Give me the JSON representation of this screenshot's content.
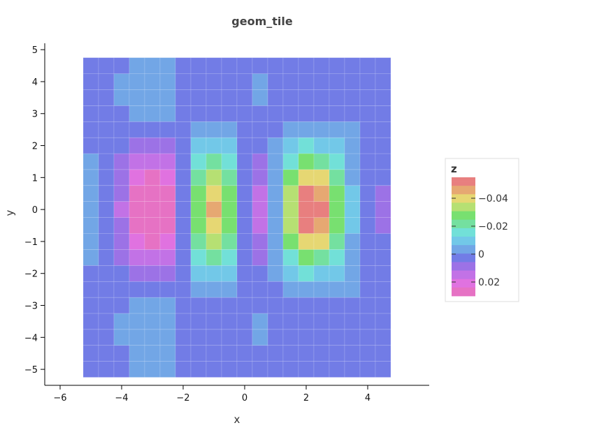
{
  "chart_data": {
    "type": "heatmap",
    "title": "geom_tile",
    "xlabel": "x",
    "ylabel": "y",
    "xlim": [
      -6.5,
      6
    ],
    "ylim": [
      -5.5,
      5.2
    ],
    "x_ticks": [
      -6,
      -4,
      -2,
      0,
      2,
      4
    ],
    "y_ticks": [
      -5,
      -4,
      -3,
      -2,
      -1,
      0,
      1,
      2,
      3,
      4,
      5
    ],
    "x_tick_labels": [
      "−6",
      "−4",
      "−2",
      "0",
      "2",
      "4"
    ],
    "y_tick_labels": [
      "−5",
      "−4",
      "−3",
      "−2",
      "−1",
      "0",
      "1",
      "2",
      "3",
      "4",
      "5"
    ],
    "x": [
      -5,
      -4.5,
      -4,
      -3.5,
      -3,
      -2.5,
      -2,
      -1.5,
      -1,
      -0.5,
      0,
      0.5,
      1,
      1.5,
      2,
      2.5,
      3,
      3.5,
      4,
      4.5
    ],
    "y": [
      -5,
      -4.5,
      -4,
      -3.5,
      -3,
      -2.5,
      -2,
      -1.5,
      -1,
      -0.5,
      0,
      0.5,
      1,
      1.5,
      2,
      2.5,
      3,
      3.5,
      4,
      4.5
    ],
    "tile_size": 0.5,
    "z_range": [
      -0.055,
      0.03
    ],
    "legend": {
      "title": "z",
      "position": "right",
      "tick_values": [
        -0.04,
        -0.02,
        0,
        0.02
      ],
      "tick_labels": [
        "−0.04",
        "−0.02",
        "0",
        "0.02"
      ]
    },
    "palette": [
      "#e87f7f",
      "#e6a872",
      "#e6d773",
      "#b6e073",
      "#78e070",
      "#74e0a0",
      "#72e0d8",
      "#72c8e8",
      "#72a6e6",
      "#727ce6",
      "#9c72e6",
      "#c272e6",
      "#e072e0",
      "#e672c4"
    ],
    "grid": false
  }
}
